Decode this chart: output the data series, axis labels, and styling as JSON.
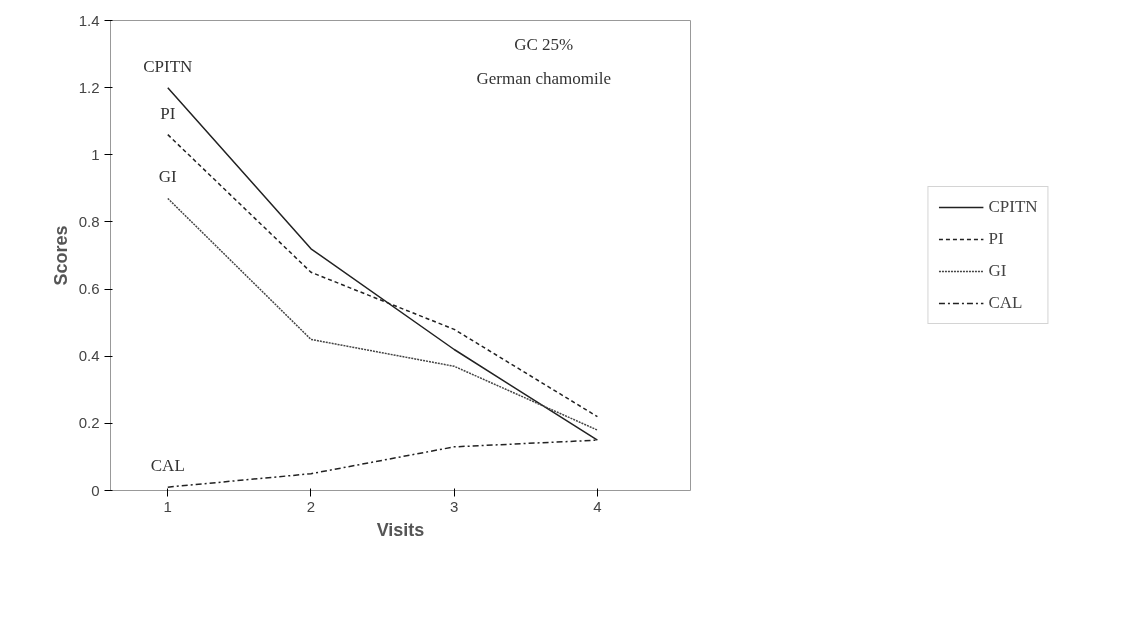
{
  "chart_data": {
    "type": "line",
    "xlabel": "Visits",
    "ylabel": "Scores",
    "x": [
      1,
      2,
      3,
      4
    ],
    "xlim": [
      0.6,
      4.65
    ],
    "xticks": [
      1,
      2,
      3,
      4
    ],
    "ylim": [
      0,
      1.4
    ],
    "yticks": [
      0,
      0.2,
      0.4,
      0.6,
      0.8,
      1,
      1.2,
      1.4
    ],
    "series": [
      {
        "name": "CPITN",
        "color": "#222222",
        "line_style": "solid",
        "values": [
          1.2,
          0.72,
          0.42,
          0.15
        ]
      },
      {
        "name": "PI",
        "color": "#222222",
        "line_style": "dashed",
        "values": [
          1.06,
          0.65,
          0.48,
          0.22
        ]
      },
      {
        "name": "GI",
        "color": "#444444",
        "line_style": "dotted",
        "values": [
          0.87,
          0.45,
          0.37,
          0.18
        ]
      },
      {
        "name": "CAL",
        "color": "#222222",
        "line_style": "dashdot",
        "values": [
          0.01,
          0.05,
          0.13,
          0.15
        ]
      }
    ],
    "annotations": [
      "GC 25%",
      "German chamomile"
    ],
    "legend": "right",
    "grid": false,
    "marker": "none"
  }
}
